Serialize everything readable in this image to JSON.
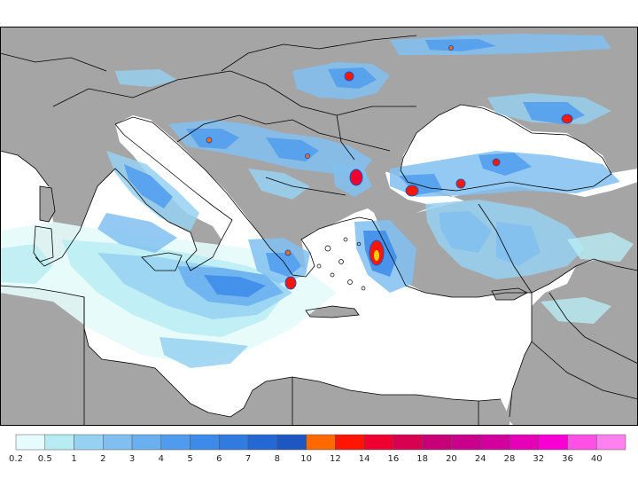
{
  "map": {
    "region": "Mediterranean and Black Sea",
    "variable": "precipitation"
  },
  "legend": {
    "labels": [
      "0.2",
      "0.5",
      "1",
      "2",
      "3",
      "4",
      "5",
      "6",
      "7",
      "8",
      "10",
      "12",
      "14",
      "16",
      "18",
      "20",
      "24",
      "28",
      "32",
      "36",
      "40"
    ],
    "colors": [
      "#e6fbfb",
      "#b8ecf3",
      "#96d1f1",
      "#80bff0",
      "#6aaff0",
      "#4f9cef",
      "#3c8bea",
      "#2f7be0",
      "#2468d4",
      "#1e56c2",
      "#ff6a00",
      "#ff1500",
      "#ee0030",
      "#d80050",
      "#c80078",
      "#c8008c",
      "#d2009e",
      "#e600b8",
      "#f800d4",
      "#ff50e6",
      "#ff80ee"
    ]
  }
}
